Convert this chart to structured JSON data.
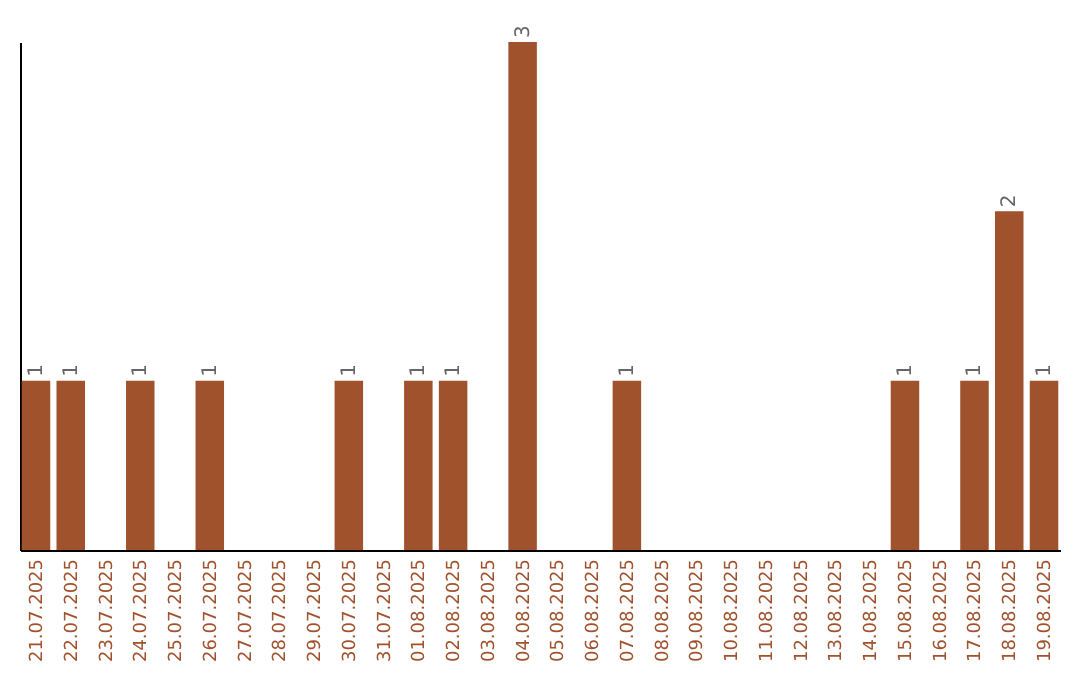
{
  "chart_data": {
    "type": "bar",
    "categories": [
      "21.07.2025",
      "22.07.2025",
      "23.07.2025",
      "24.07.2025",
      "25.07.2025",
      "26.07.2025",
      "27.07.2025",
      "28.07.2025",
      "29.07.2025",
      "30.07.2025",
      "31.07.2025",
      "01.08.2025",
      "02.08.2025",
      "03.08.2025",
      "04.08.2025",
      "05.08.2025",
      "06.08.2025",
      "07.08.2025",
      "08.08.2025",
      "09.08.2025",
      "10.08.2025",
      "11.08.2025",
      "12.08.2025",
      "13.08.2025",
      "14.08.2025",
      "15.08.2025",
      "16.08.2025",
      "17.08.2025",
      "18.08.2025",
      "19.08.2025"
    ],
    "values": [
      1,
      1,
      0,
      1,
      0,
      1,
      0,
      0,
      0,
      1,
      0,
      1,
      1,
      0,
      3,
      0,
      0,
      1,
      0,
      0,
      0,
      0,
      0,
      0,
      0,
      1,
      0,
      1,
      2,
      1
    ],
    "value_labels": [
      "1",
      "1",
      null,
      "1",
      null,
      "1",
      null,
      null,
      null,
      "1",
      null,
      "1",
      "1",
      null,
      "3",
      null,
      null,
      "1",
      null,
      null,
      null,
      null,
      null,
      null,
      null,
      "1",
      null,
      "1",
      "2",
      "1"
    ],
    "color": "#a0522d",
    "tick_labels": "x",
    "grid": false
  }
}
